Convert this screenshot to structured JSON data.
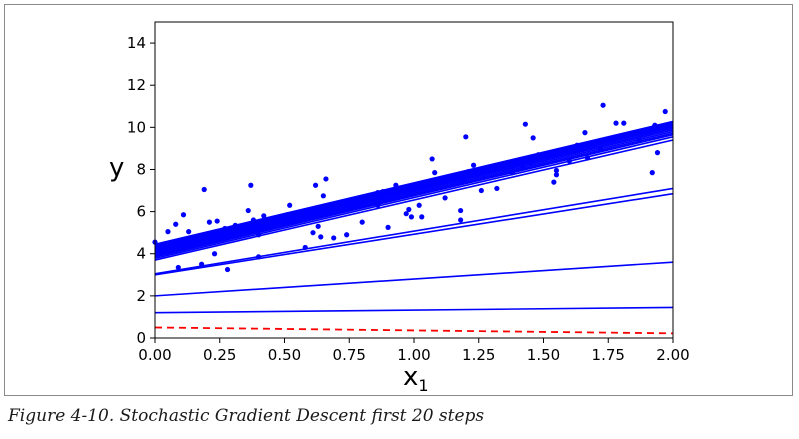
{
  "caption": "Figure 4-10. Stochastic Gradient Descent first 20 steps",
  "chart_data": {
    "type": "scatter",
    "title": "",
    "xlabel": "x",
    "xlabel_sub": "1",
    "ylabel": "y",
    "xlim": [
      0,
      2
    ],
    "ylim": [
      0,
      15
    ],
    "xticks": [
      0,
      0.25,
      0.5,
      0.75,
      1.0,
      1.25,
      1.5,
      1.75,
      2.0
    ],
    "xtick_labels": [
      "0.00",
      "0.25",
      "0.50",
      "0.75",
      "1.00",
      "1.25",
      "1.50",
      "1.75",
      "2.00"
    ],
    "yticks": [
      0,
      2,
      4,
      6,
      8,
      10,
      12,
      14
    ],
    "ytick_labels": [
      "0",
      "2",
      "4",
      "6",
      "8",
      "10",
      "12",
      "14"
    ],
    "grid": false,
    "colors": {
      "points": "#0000ff",
      "lines": "#0000ff",
      "initial_line": "#ff0000"
    },
    "points": [
      [
        0.0,
        4.55
      ],
      [
        0.01,
        4.2
      ],
      [
        0.05,
        5.05
      ],
      [
        0.07,
        4.4
      ],
      [
        0.08,
        5.4
      ],
      [
        0.09,
        3.35
      ],
      [
        0.11,
        5.85
      ],
      [
        0.13,
        5.05
      ],
      [
        0.14,
        4.6
      ],
      [
        0.18,
        3.5
      ],
      [
        0.19,
        7.05
      ],
      [
        0.21,
        5.5
      ],
      [
        0.23,
        4.0
      ],
      [
        0.24,
        5.55
      ],
      [
        0.27,
        5.2
      ],
      [
        0.28,
        3.25
      ],
      [
        0.31,
        5.35
      ],
      [
        0.36,
        6.05
      ],
      [
        0.37,
        7.25
      ],
      [
        0.38,
        5.6
      ],
      [
        0.4,
        4.9
      ],
      [
        0.4,
        3.85
      ],
      [
        0.42,
        5.8
      ],
      [
        0.51,
        5.85
      ],
      [
        0.52,
        6.3
      ],
      [
        0.56,
        5.65
      ],
      [
        0.58,
        4.3
      ],
      [
        0.61,
        5.0
      ],
      [
        0.62,
        7.25
      ],
      [
        0.63,
        5.3
      ],
      [
        0.64,
        4.8
      ],
      [
        0.65,
        6.75
      ],
      [
        0.66,
        7.55
      ],
      [
        0.69,
        4.75
      ],
      [
        0.72,
        6.45
      ],
      [
        0.74,
        4.9
      ],
      [
        0.76,
        6.15
      ],
      [
        0.8,
        5.5
      ],
      [
        0.86,
        6.9
      ],
      [
        0.86,
        6.3
      ],
      [
        0.88,
        6.95
      ],
      [
        0.9,
        5.25
      ],
      [
        0.93,
        7.25
      ],
      [
        0.97,
        5.9
      ],
      [
        0.98,
        6.1
      ],
      [
        0.99,
        5.75
      ],
      [
        1.02,
        6.3
      ],
      [
        1.03,
        5.75
      ],
      [
        1.07,
        8.5
      ],
      [
        1.08,
        7.85
      ],
      [
        1.12,
        6.65
      ],
      [
        1.18,
        6.05
      ],
      [
        1.18,
        5.6
      ],
      [
        1.19,
        7.5
      ],
      [
        1.2,
        9.55
      ],
      [
        1.21,
        7.9
      ],
      [
        1.23,
        8.2
      ],
      [
        1.26,
        7.0
      ],
      [
        1.31,
        8.0
      ],
      [
        1.32,
        7.1
      ],
      [
        1.38,
        7.85
      ],
      [
        1.41,
        8.45
      ],
      [
        1.42,
        8.1
      ],
      [
        1.43,
        10.15
      ],
      [
        1.45,
        8.3
      ],
      [
        1.46,
        9.5
      ],
      [
        1.48,
        8.7
      ],
      [
        1.54,
        7.4
      ],
      [
        1.55,
        7.95
      ],
      [
        1.55,
        7.75
      ],
      [
        1.6,
        8.4
      ],
      [
        1.62,
        8.85
      ],
      [
        1.63,
        9.15
      ],
      [
        1.66,
        9.75
      ],
      [
        1.67,
        8.55
      ],
      [
        1.72,
        8.95
      ],
      [
        1.73,
        11.05
      ],
      [
        1.78,
        10.2
      ],
      [
        1.81,
        10.2
      ],
      [
        1.82,
        9.65
      ],
      [
        1.87,
        9.4
      ],
      [
        1.92,
        7.85
      ],
      [
        1.93,
        10.1
      ],
      [
        1.94,
        8.8
      ],
      [
        1.97,
        10.75
      ]
    ],
    "lines": [
      {
        "y0": 1.2,
        "y1": 1.45
      },
      {
        "y0": 2.0,
        "y1": 3.6
      },
      {
        "y0": 3.0,
        "y1": 6.85
      },
      {
        "y0": 3.05,
        "y1": 7.1
      },
      {
        "y0": 3.7,
        "y1": 9.4
      },
      {
        "y0": 3.78,
        "y1": 9.55
      },
      {
        "y0": 3.85,
        "y1": 9.65
      },
      {
        "y0": 3.9,
        "y1": 9.72
      },
      {
        "y0": 3.95,
        "y1": 9.8
      },
      {
        "y0": 4.0,
        "y1": 9.88
      },
      {
        "y0": 4.05,
        "y1": 9.95
      },
      {
        "y0": 4.1,
        "y1": 10.02
      },
      {
        "y0": 4.15,
        "y1": 10.08
      },
      {
        "y0": 4.2,
        "y1": 10.12
      },
      {
        "y0": 4.25,
        "y1": 10.15
      },
      {
        "y0": 4.3,
        "y1": 10.2
      },
      {
        "y0": 4.35,
        "y1": 10.22
      },
      {
        "y0": 4.4,
        "y1": 10.25
      },
      {
        "y0": 4.45,
        "y1": 10.28
      }
    ],
    "initial_line": {
      "y0": 0.5,
      "y1": 0.22,
      "style": "dashed"
    }
  }
}
